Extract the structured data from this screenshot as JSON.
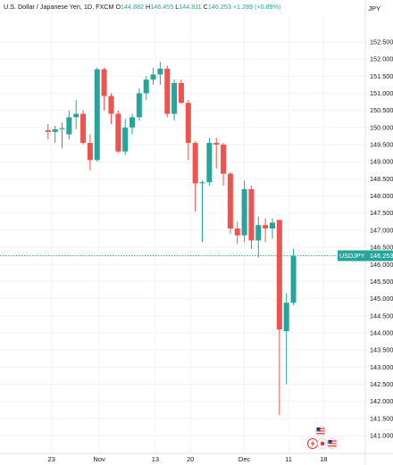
{
  "header": {
    "symbol_text": "U.S. Dollar / Japanese Yen, 1D, FXCM",
    "open_label": "O",
    "open_value": "144.882",
    "high_label": "H",
    "high_value": "146.455",
    "low_label": "L",
    "low_value": "144.811",
    "close_label": "C",
    "close_value": "146.253",
    "change_value": "+1.289 (+0.89%)",
    "currency": "JPY"
  },
  "price_tag": {
    "symbol": "USDJPY",
    "price": "146.253"
  },
  "colors": {
    "up": "#26a69a",
    "down": "#ef5350",
    "grid": "#f0f3fa",
    "text": "#131722",
    "price_line": "#26a69a"
  },
  "chart_data": {
    "type": "candlestick",
    "y_range": [
      141.0,
      152.5
    ],
    "y_ticks": [
      "152.500",
      "152.000",
      "151.500",
      "151.000",
      "150.500",
      "150.000",
      "149.500",
      "149.000",
      "148.500",
      "148.000",
      "147.500",
      "147.000",
      "146.500",
      "146.000",
      "145.500",
      "145.000",
      "144.500",
      "144.000",
      "143.500",
      "143.000",
      "142.500",
      "142.000",
      "141.500",
      "141.000"
    ],
    "x_tick_labels": [
      {
        "label": "23",
        "index": -1.5
      },
      {
        "label": "Nov",
        "index": 5.3
      },
      {
        "label": "13",
        "index": 13.3
      },
      {
        "label": "20",
        "index": 18.3
      },
      {
        "label": "Dec",
        "index": 26.0
      },
      {
        "label": "11",
        "index": 32.3
      },
      {
        "label": "18",
        "index": 37.3
      }
    ],
    "candles": [
      {
        "index": -2,
        "open": 149.92,
        "high": 150.1,
        "low": 149.65,
        "close": 149.87
      },
      {
        "index": -1,
        "open": 149.87,
        "high": 150.05,
        "low": 149.55,
        "close": 149.95
      },
      {
        "index": 0,
        "open": 149.95,
        "high": 150.15,
        "low": 149.4,
        "close": 149.98
      },
      {
        "index": 1,
        "open": 149.8,
        "high": 150.5,
        "low": 149.65,
        "close": 150.3
      },
      {
        "index": 2,
        "open": 150.3,
        "high": 150.8,
        "low": 149.95,
        "close": 150.4
      },
      {
        "index": 3,
        "open": 150.4,
        "high": 150.5,
        "low": 149.5,
        "close": 149.55
      },
      {
        "index": 4,
        "open": 149.55,
        "high": 149.8,
        "low": 148.75,
        "close": 149.05
      },
      {
        "index": 5,
        "open": 149.05,
        "high": 151.75,
        "low": 149.0,
        "close": 151.7
      },
      {
        "index": 6,
        "open": 151.7,
        "high": 151.75,
        "low": 150.5,
        "close": 150.92
      },
      {
        "index": 7,
        "open": 150.92,
        "high": 151.0,
        "low": 150.1,
        "close": 150.4
      },
      {
        "index": 8,
        "open": 150.4,
        "high": 150.5,
        "low": 149.25,
        "close": 149.3
      },
      {
        "index": 9,
        "open": 149.3,
        "high": 150.25,
        "low": 149.2,
        "close": 150.0
      },
      {
        "index": 10,
        "open": 150.0,
        "high": 150.4,
        "low": 149.8,
        "close": 150.3
      },
      {
        "index": 11,
        "open": 150.3,
        "high": 151.15,
        "low": 150.2,
        "close": 151.0
      },
      {
        "index": 12,
        "open": 151.0,
        "high": 151.5,
        "low": 150.8,
        "close": 151.4
      },
      {
        "index": 13,
        "open": 151.4,
        "high": 151.75,
        "low": 151.25,
        "close": 151.55
      },
      {
        "index": 14,
        "open": 151.55,
        "high": 151.92,
        "low": 151.25,
        "close": 151.72
      },
      {
        "index": 15,
        "open": 151.72,
        "high": 151.8,
        "low": 150.3,
        "close": 150.4
      },
      {
        "index": 16,
        "open": 150.4,
        "high": 151.4,
        "low": 150.2,
        "close": 151.3
      },
      {
        "index": 17,
        "open": 151.3,
        "high": 151.4,
        "low": 150.7,
        "close": 150.72
      },
      {
        "index": 18,
        "open": 150.72,
        "high": 150.8,
        "low": 149.05,
        "close": 149.55
      },
      {
        "index": 19,
        "open": 149.55,
        "high": 149.6,
        "low": 147.55,
        "close": 148.37
      },
      {
        "index": 20,
        "open": 148.37,
        "high": 148.45,
        "low": 146.65,
        "close": 148.4
      },
      {
        "index": 21,
        "open": 148.4,
        "high": 149.7,
        "low": 148.3,
        "close": 149.55
      },
      {
        "index": 22,
        "open": 149.55,
        "high": 149.7,
        "low": 148.8,
        "close": 149.5
      },
      {
        "index": 23,
        "open": 149.5,
        "high": 149.55,
        "low": 148.3,
        "close": 148.65
      },
      {
        "index": 24,
        "open": 148.65,
        "high": 148.7,
        "low": 146.9,
        "close": 147.05
      },
      {
        "index": 25,
        "open": 147.05,
        "high": 147.25,
        "low": 146.6,
        "close": 146.85
      },
      {
        "index": 26,
        "open": 146.85,
        "high": 148.45,
        "low": 146.65,
        "close": 148.2
      },
      {
        "index": 27,
        "open": 148.2,
        "high": 148.3,
        "low": 146.45,
        "close": 146.7
      },
      {
        "index": 28,
        "open": 146.7,
        "high": 147.4,
        "low": 146.2,
        "close": 147.15
      },
      {
        "index": 29,
        "open": 147.15,
        "high": 147.35,
        "low": 146.65,
        "close": 147.05
      },
      {
        "index": 30,
        "open": 147.05,
        "high": 147.35,
        "low": 146.75,
        "close": 147.22
      },
      {
        "index": 31,
        "open": 147.3,
        "high": 147.3,
        "low": 141.6,
        "close": 144.1
      },
      {
        "index": 32,
        "open": 144.05,
        "high": 145.15,
        "low": 142.5,
        "close": 144.88
      },
      {
        "index": 33,
        "open": 144.88,
        "high": 146.45,
        "low": 144.81,
        "close": 146.25
      }
    ]
  }
}
